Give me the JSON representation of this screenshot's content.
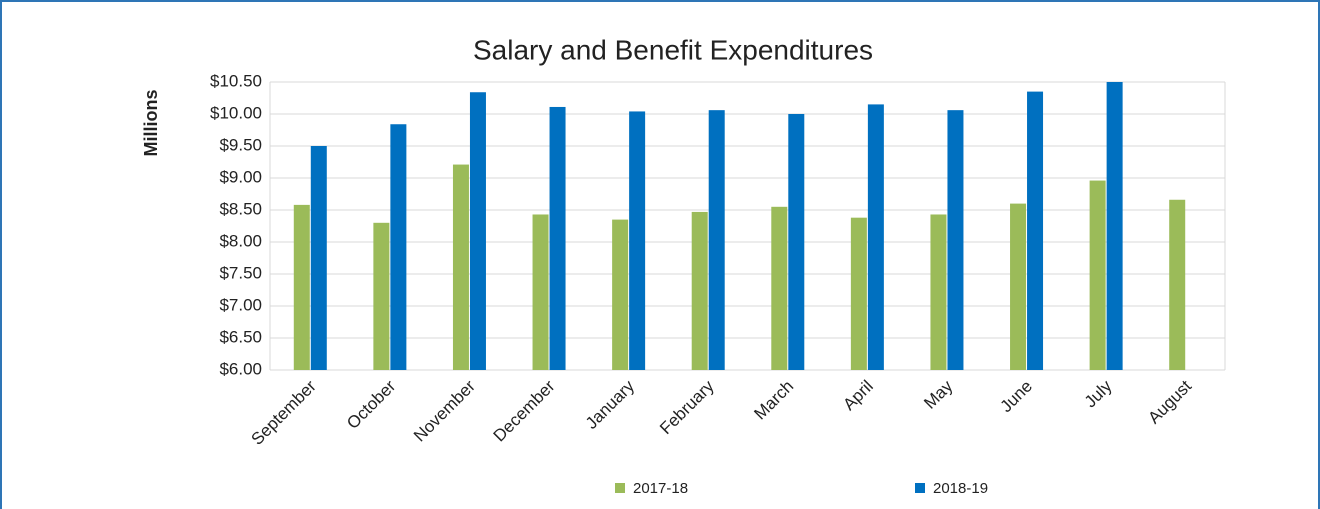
{
  "chart_data": {
    "type": "bar",
    "title": "Salary and Benefit Expenditures",
    "y_label": "Millions",
    "categories": [
      "September",
      "October",
      "November",
      "December",
      "January",
      "February",
      "March",
      "April",
      "May",
      "June",
      "July",
      "August"
    ],
    "series": [
      {
        "name": "2017-18",
        "color": "#9bbb59",
        "values": [
          8.58,
          8.3,
          9.21,
          8.43,
          8.35,
          8.47,
          8.55,
          8.38,
          8.43,
          8.6,
          8.96,
          8.66
        ]
      },
      {
        "name": "2018-19",
        "color": "#0070c0",
        "values": [
          9.5,
          9.84,
          10.34,
          10.11,
          10.04,
          10.06,
          10.0,
          10.15,
          10.06,
          10.35,
          10.5,
          null
        ]
      }
    ],
    "ylim": [
      6,
      10.5
    ],
    "yticks": [
      {
        "value": 6,
        "label": "$6.00"
      },
      {
        "value": 6.5,
        "label": "$6.50"
      },
      {
        "value": 7,
        "label": "$7.00"
      },
      {
        "value": 7.5,
        "label": "$7.50"
      },
      {
        "value": 8,
        "label": "$8.00"
      },
      {
        "value": 8.5,
        "label": "$8.50"
      },
      {
        "value": 9,
        "label": "$9.00"
      },
      {
        "value": 9.5,
        "label": "$9.50"
      },
      {
        "value": 10,
        "label": "$10.00"
      },
      {
        "value": 10.5,
        "label": "$10.50"
      }
    ],
    "grid": true,
    "legend": "bottom"
  }
}
